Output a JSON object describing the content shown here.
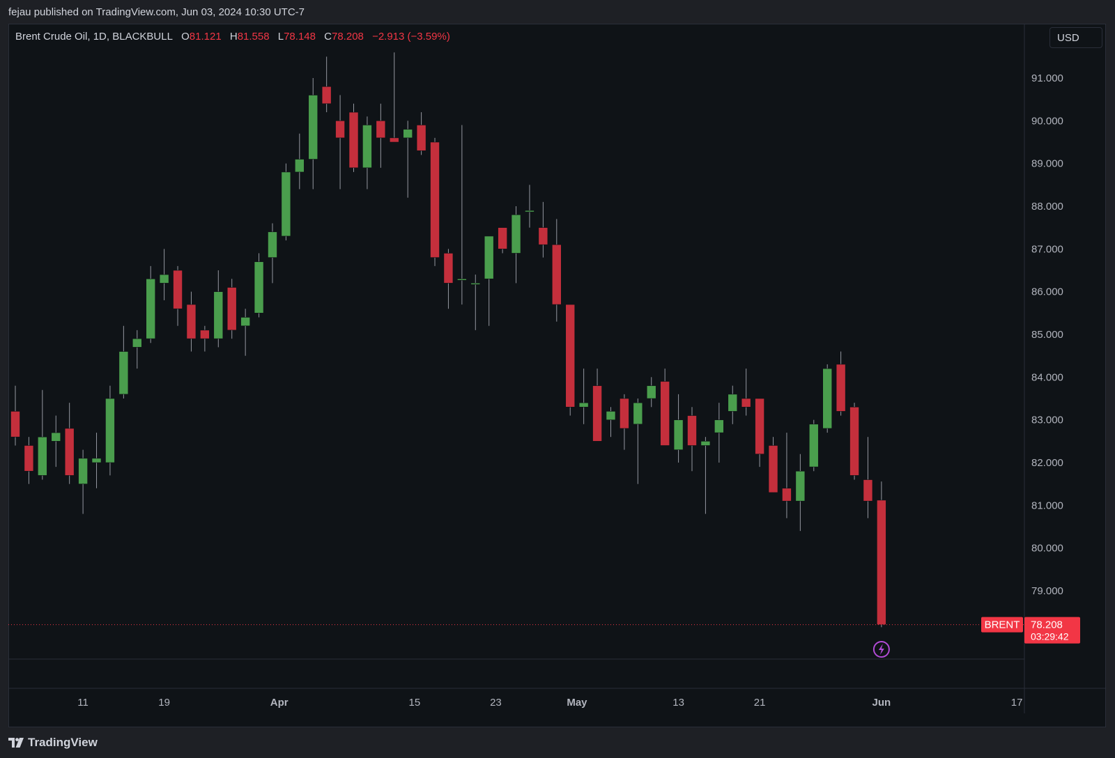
{
  "header": {
    "published": "fejau published on TradingView.com, Jun 03, 2024 10:30 UTC-7"
  },
  "legend": {
    "symbol": "Brent Crude Oil, 1D, BLACKBULL",
    "open_label": "O",
    "open": "81.121",
    "high_label": "H",
    "high": "81.558",
    "low_label": "L",
    "low": "78.148",
    "close_label": "C",
    "close": "78.208",
    "change": "−2.913 (−3.59%)"
  },
  "currency_button": "USD",
  "price_tag": {
    "symbol": "BRENT",
    "price": "78.208",
    "countdown": "03:29:42"
  },
  "footer": {
    "brand": "TradingView"
  },
  "colors": {
    "up": "#4a9e4d",
    "down": "#c42f3c",
    "accent_red": "#f23645",
    "background": "#0f1317"
  },
  "icons": {
    "alert": "lightning-bolt-icon",
    "logo": "tradingview-logo-icon"
  },
  "chart_data": {
    "type": "candlestick",
    "y_axis": {
      "side": "right",
      "range": [
        77.2,
        92.2
      ],
      "ticks": [
        "79.000",
        "80.000",
        "81.000",
        "82.000",
        "83.000",
        "84.000",
        "85.000",
        "86.000",
        "87.000",
        "88.000",
        "89.000",
        "90.000",
        "91.000"
      ]
    },
    "x_axis": {
      "labels": [
        {
          "text": "11",
          "bar": 5,
          "bold": false
        },
        {
          "text": "19",
          "bar": 11,
          "bold": false
        },
        {
          "text": "Apr",
          "bar": 19.5,
          "bold": true
        },
        {
          "text": "15",
          "bar": 29.5,
          "bold": false
        },
        {
          "text": "23",
          "bar": 35.5,
          "bold": false
        },
        {
          "text": "May",
          "bar": 41.5,
          "bold": true
        },
        {
          "text": "13",
          "bar": 49,
          "bold": false
        },
        {
          "text": "21",
          "bar": 55,
          "bold": false
        },
        {
          "text": "Jun",
          "bar": 64,
          "bold": true
        },
        {
          "text": "17",
          "bar": 74,
          "bold": false
        }
      ]
    },
    "last_price": 78.208,
    "ohlc": [
      [
        83.2,
        83.8,
        82.4,
        82.6
      ],
      [
        82.4,
        82.6,
        81.5,
        81.8
      ],
      [
        81.7,
        83.7,
        81.6,
        82.6
      ],
      [
        82.5,
        83.1,
        81.9,
        82.7
      ],
      [
        82.8,
        83.4,
        81.5,
        81.7
      ],
      [
        81.5,
        82.3,
        80.8,
        82.1
      ],
      [
        82.0,
        82.7,
        81.4,
        82.1
      ],
      [
        82.0,
        83.8,
        81.7,
        83.5
      ],
      [
        83.6,
        85.2,
        83.5,
        84.6
      ],
      [
        84.7,
        85.1,
        84.2,
        84.9
      ],
      [
        84.9,
        86.6,
        84.8,
        86.3
      ],
      [
        86.2,
        87.0,
        85.8,
        86.4
      ],
      [
        86.5,
        86.6,
        85.2,
        85.6
      ],
      [
        85.7,
        86.0,
        84.6,
        84.9
      ],
      [
        85.1,
        85.2,
        84.6,
        84.9
      ],
      [
        84.9,
        86.5,
        84.7,
        86.0
      ],
      [
        86.1,
        86.3,
        84.9,
        85.1
      ],
      [
        85.2,
        85.6,
        84.5,
        85.4
      ],
      [
        85.5,
        86.9,
        85.4,
        86.7
      ],
      [
        86.8,
        87.6,
        86.2,
        87.4
      ],
      [
        87.3,
        89.0,
        87.2,
        88.8
      ],
      [
        88.8,
        89.7,
        88.4,
        89.1
      ],
      [
        89.1,
        91.0,
        88.4,
        90.6
      ],
      [
        90.8,
        91.5,
        90.2,
        90.4
      ],
      [
        90.0,
        90.6,
        88.4,
        89.6
      ],
      [
        90.2,
        90.4,
        88.8,
        88.9
      ],
      [
        88.9,
        90.1,
        88.4,
        89.9
      ],
      [
        90.0,
        90.4,
        88.9,
        89.6
      ],
      [
        89.6,
        91.6,
        89.5,
        89.5
      ],
      [
        89.6,
        90.0,
        88.2,
        89.8
      ],
      [
        89.9,
        90.2,
        89.2,
        89.3
      ],
      [
        89.5,
        89.6,
        86.6,
        86.8
      ],
      [
        86.9,
        87.0,
        85.6,
        86.2
      ],
      [
        86.3,
        89.9,
        85.7,
        86.3
      ],
      [
        86.2,
        86.4,
        85.1,
        86.2
      ],
      [
        86.3,
        87.2,
        85.2,
        87.3
      ],
      [
        87.5,
        87.5,
        86.9,
        87.0
      ],
      [
        86.9,
        88.0,
        86.2,
        87.8
      ],
      [
        87.9,
        88.5,
        87.5,
        87.9
      ],
      [
        87.5,
        88.1,
        86.8,
        87.1
      ],
      [
        87.1,
        87.7,
        85.3,
        85.7
      ],
      [
        85.7,
        85.7,
        83.1,
        83.3
      ],
      [
        83.3,
        84.2,
        82.9,
        83.4
      ],
      [
        83.8,
        84.2,
        82.5,
        82.5
      ],
      [
        83.0,
        83.3,
        82.6,
        83.2
      ],
      [
        83.5,
        83.6,
        82.3,
        82.8
      ],
      [
        82.9,
        83.5,
        81.5,
        83.4
      ],
      [
        83.5,
        84.0,
        83.3,
        83.8
      ],
      [
        83.9,
        84.2,
        82.4,
        82.4
      ],
      [
        82.3,
        83.6,
        82.0,
        83.0
      ],
      [
        83.1,
        83.3,
        81.8,
        82.4
      ],
      [
        82.4,
        82.6,
        80.8,
        82.5
      ],
      [
        82.7,
        83.4,
        82.0,
        83.0
      ],
      [
        83.2,
        83.8,
        82.9,
        83.6
      ],
      [
        83.5,
        84.2,
        83.1,
        83.3
      ],
      [
        83.5,
        83.5,
        81.9,
        82.2
      ],
      [
        82.4,
        82.6,
        81.3,
        81.3
      ],
      [
        81.4,
        82.7,
        80.7,
        81.1
      ],
      [
        81.1,
        82.2,
        80.4,
        81.8
      ],
      [
        81.9,
        83.0,
        81.8,
        82.9
      ],
      [
        82.8,
        84.3,
        82.7,
        84.2
      ],
      [
        84.3,
        84.6,
        83.1,
        83.2
      ],
      [
        83.3,
        83.4,
        81.6,
        81.7
      ],
      [
        81.6,
        82.6,
        80.7,
        81.1
      ],
      [
        81.121,
        81.558,
        78.148,
        78.208
      ]
    ]
  }
}
